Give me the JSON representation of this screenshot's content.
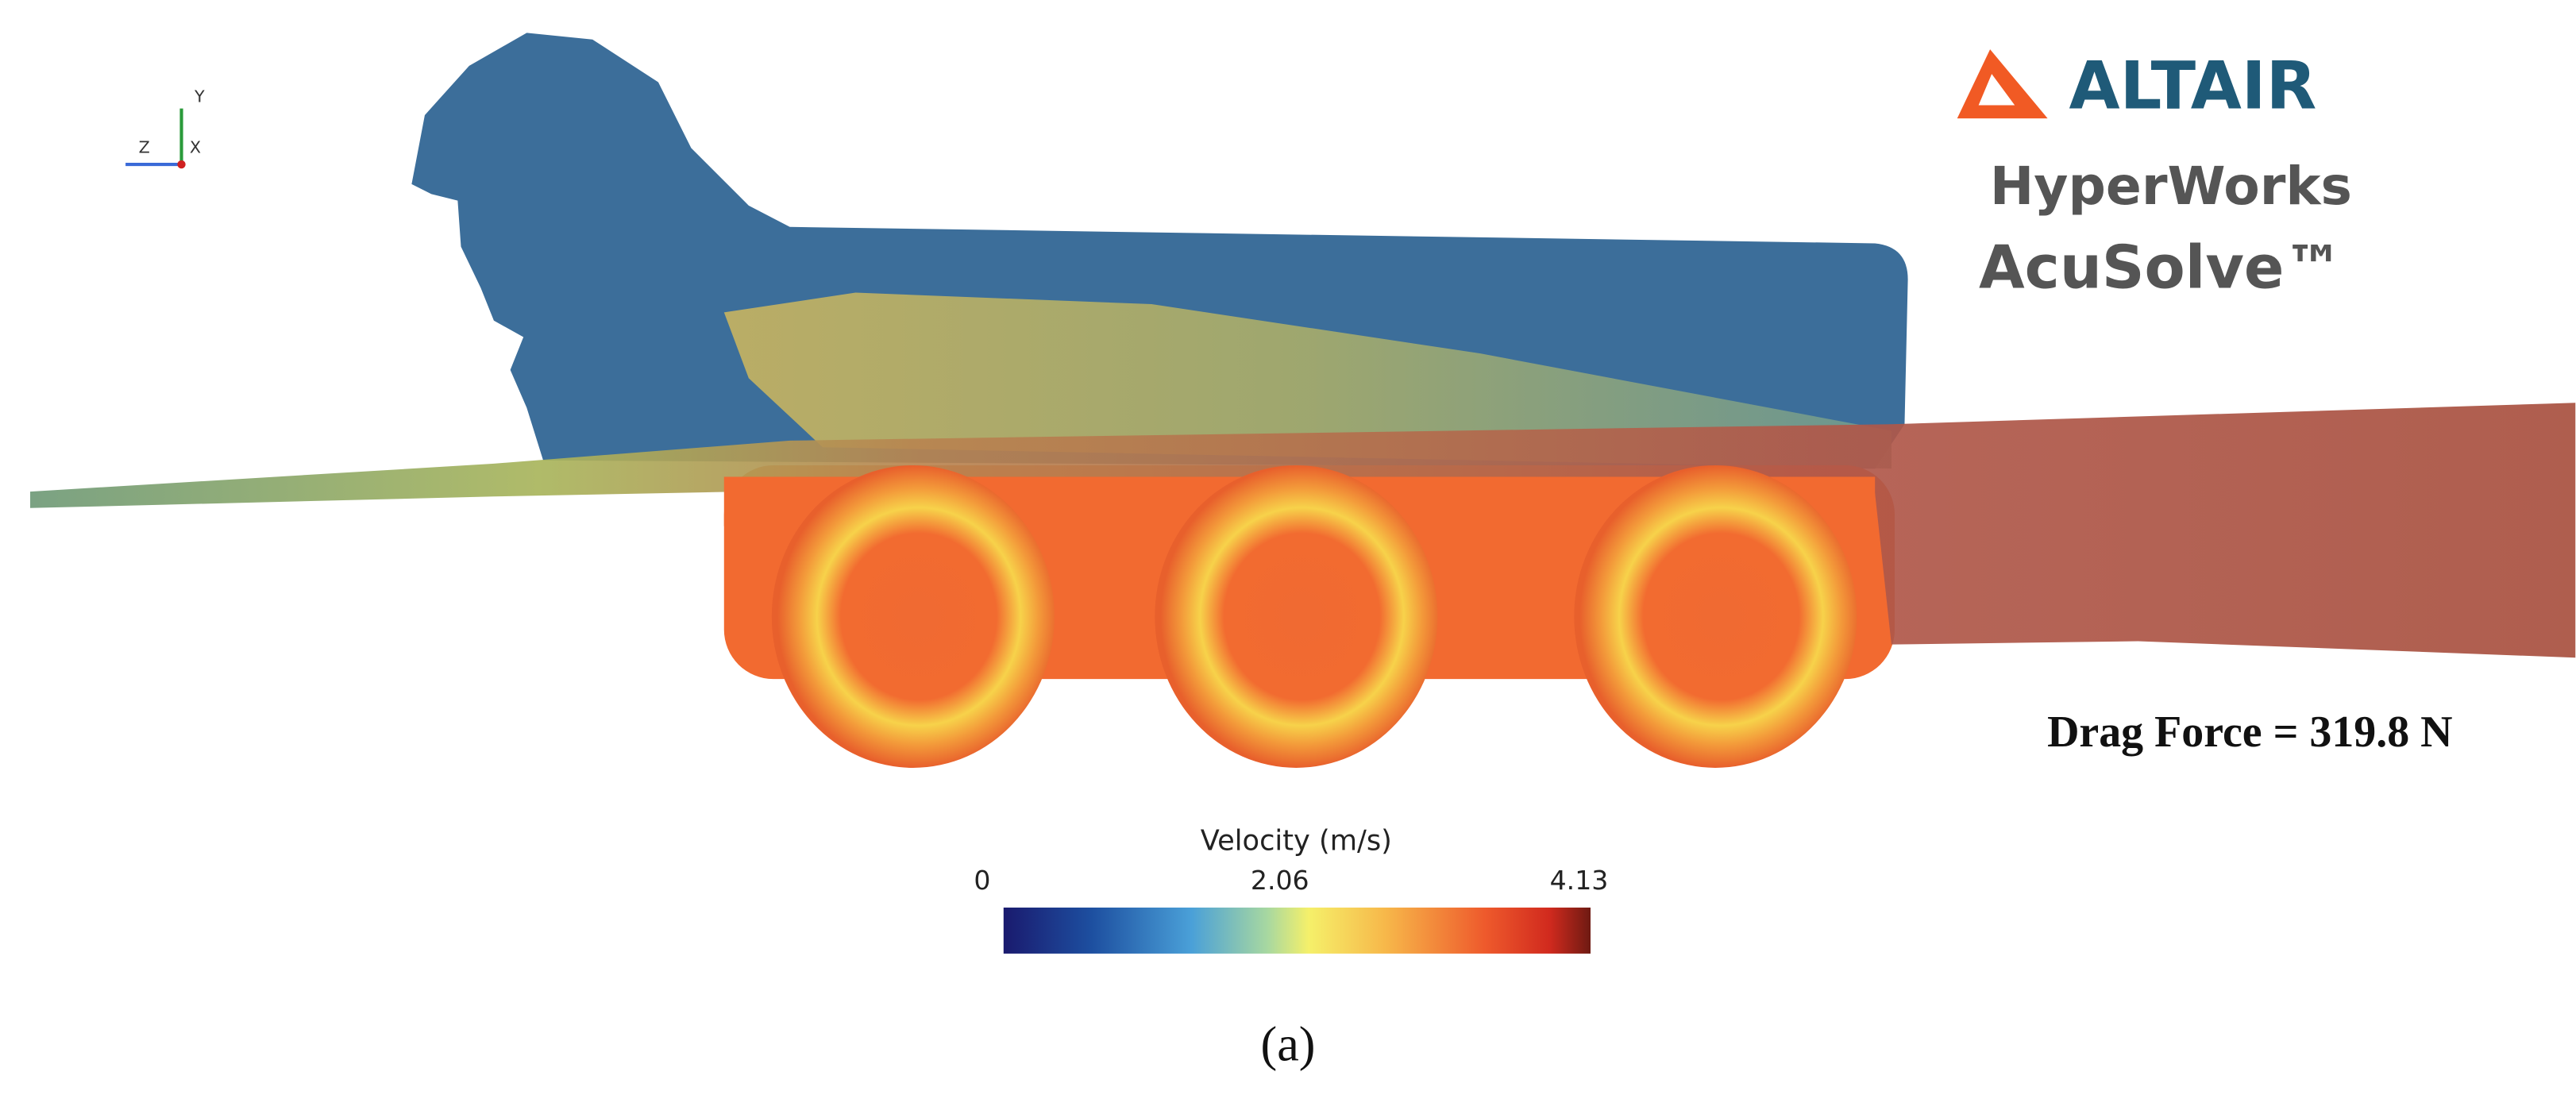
{
  "logo": {
    "brand": "ALTAIR",
    "product": "HyperWorks",
    "module": "AcuSolve™"
  },
  "axes_triad": {
    "y": "Y",
    "z": "Z",
    "x": "X"
  },
  "annotation": "Drag Force = 319.8 N",
  "colorbar": {
    "title": "Velocity (m/s)",
    "ticks": [
      0,
      2.06,
      4.13
    ]
  },
  "caption": "(a)"
}
